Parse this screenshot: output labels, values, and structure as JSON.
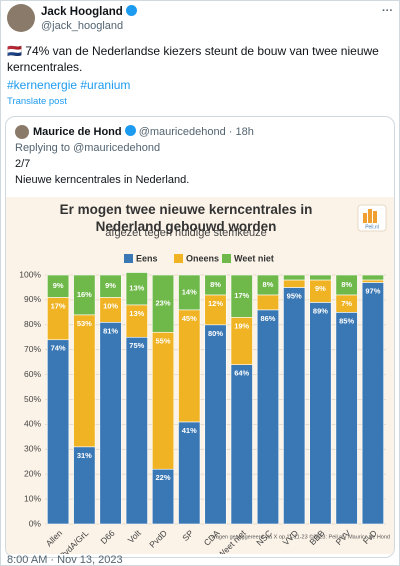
{
  "tweet": {
    "author": "Jack Hoogland",
    "handle": "@jack_hoogland",
    "text": "🇳🇱 74% van de Nederlandse kiezers steunt de bouw van twee nieuwe kerncentrales.",
    "hashtags": "#kernenergie #uranium",
    "translate": "Translate post",
    "timestamp": "8:00 AM · Nov 13, 2023"
  },
  "quoted": {
    "author": "Maurice de Hond",
    "handle": "@mauricedehond",
    "time": "· 18h",
    "reply_to": "Replying to @mauricedehond",
    "count": "2/7",
    "text": "Nieuwe kerncentrales in Nederland."
  },
  "chart_data": {
    "type": "stacked_bar",
    "title": "Er mogen twee nieuwe kerncentrales in Nederland gebouwd worden",
    "subtitle": "afgezet tegen huidige stemkeuze",
    "logo": "Peil.nl",
    "footnote": "vragen gesuggereerd via X op 11-11-23 ©2023: Peil.nl / Maurice de Hond",
    "categories": [
      "Allen",
      "PvdA/GrL",
      "D66",
      "Volt",
      "PvdD",
      "SP",
      "CDA",
      "Weet niet",
      "NSC",
      "VVD",
      "BBB",
      "PVV",
      "FvD"
    ],
    "series": [
      {
        "name": "Eens",
        "color": "#3a78b5",
        "values": [
          74,
          31,
          81,
          75,
          22,
          41,
          80,
          64,
          86,
          95,
          89,
          85,
          97
        ],
        "value_labels": [
          "74%",
          "31%",
          "81%",
          "75%",
          "22%",
          "41%",
          "80%",
          "64%",
          "86%",
          "95%",
          "89%",
          "85%",
          "97%"
        ]
      },
      {
        "name": "Oneens",
        "color": "#f0b323",
        "values": [
          17,
          53,
          10,
          13,
          55,
          45,
          12,
          19,
          6,
          3,
          9,
          7,
          1
        ],
        "value_labels": [
          "17%",
          "53%",
          "10%",
          "13%",
          "55%",
          "45%",
          "12%",
          "19%",
          null,
          null,
          "9%",
          "7%",
          null
        ]
      },
      {
        "name": "Weet niet",
        "color": "#6fb94a",
        "values": [
          9,
          16,
          9,
          13,
          23,
          14,
          8,
          17,
          8,
          2,
          2,
          8,
          2
        ],
        "value_labels": [
          "9%",
          "16%",
          "9%",
          "13%",
          "23%",
          "14%",
          "8%",
          "17%",
          "8%",
          null,
          null,
          "8%",
          null
        ]
      }
    ],
    "ylim": [
      0,
      100
    ],
    "yticks": [
      {
        "value": 0,
        "label": "0%"
      },
      {
        "value": 10,
        "label": "10%"
      },
      {
        "value": 20,
        "label": "20%"
      },
      {
        "value": 30,
        "label": "30%"
      },
      {
        "value": 40,
        "label": "40%"
      },
      {
        "value": 50,
        "label": "50%"
      },
      {
        "value": 60,
        "label": "60%"
      },
      {
        "value": 70,
        "label": "70%"
      },
      {
        "value": 80,
        "label": "80%"
      },
      {
        "value": 90,
        "label": "90%"
      },
      {
        "value": 100,
        "label": "100%"
      }
    ],
    "grid": true,
    "legend": "top"
  }
}
